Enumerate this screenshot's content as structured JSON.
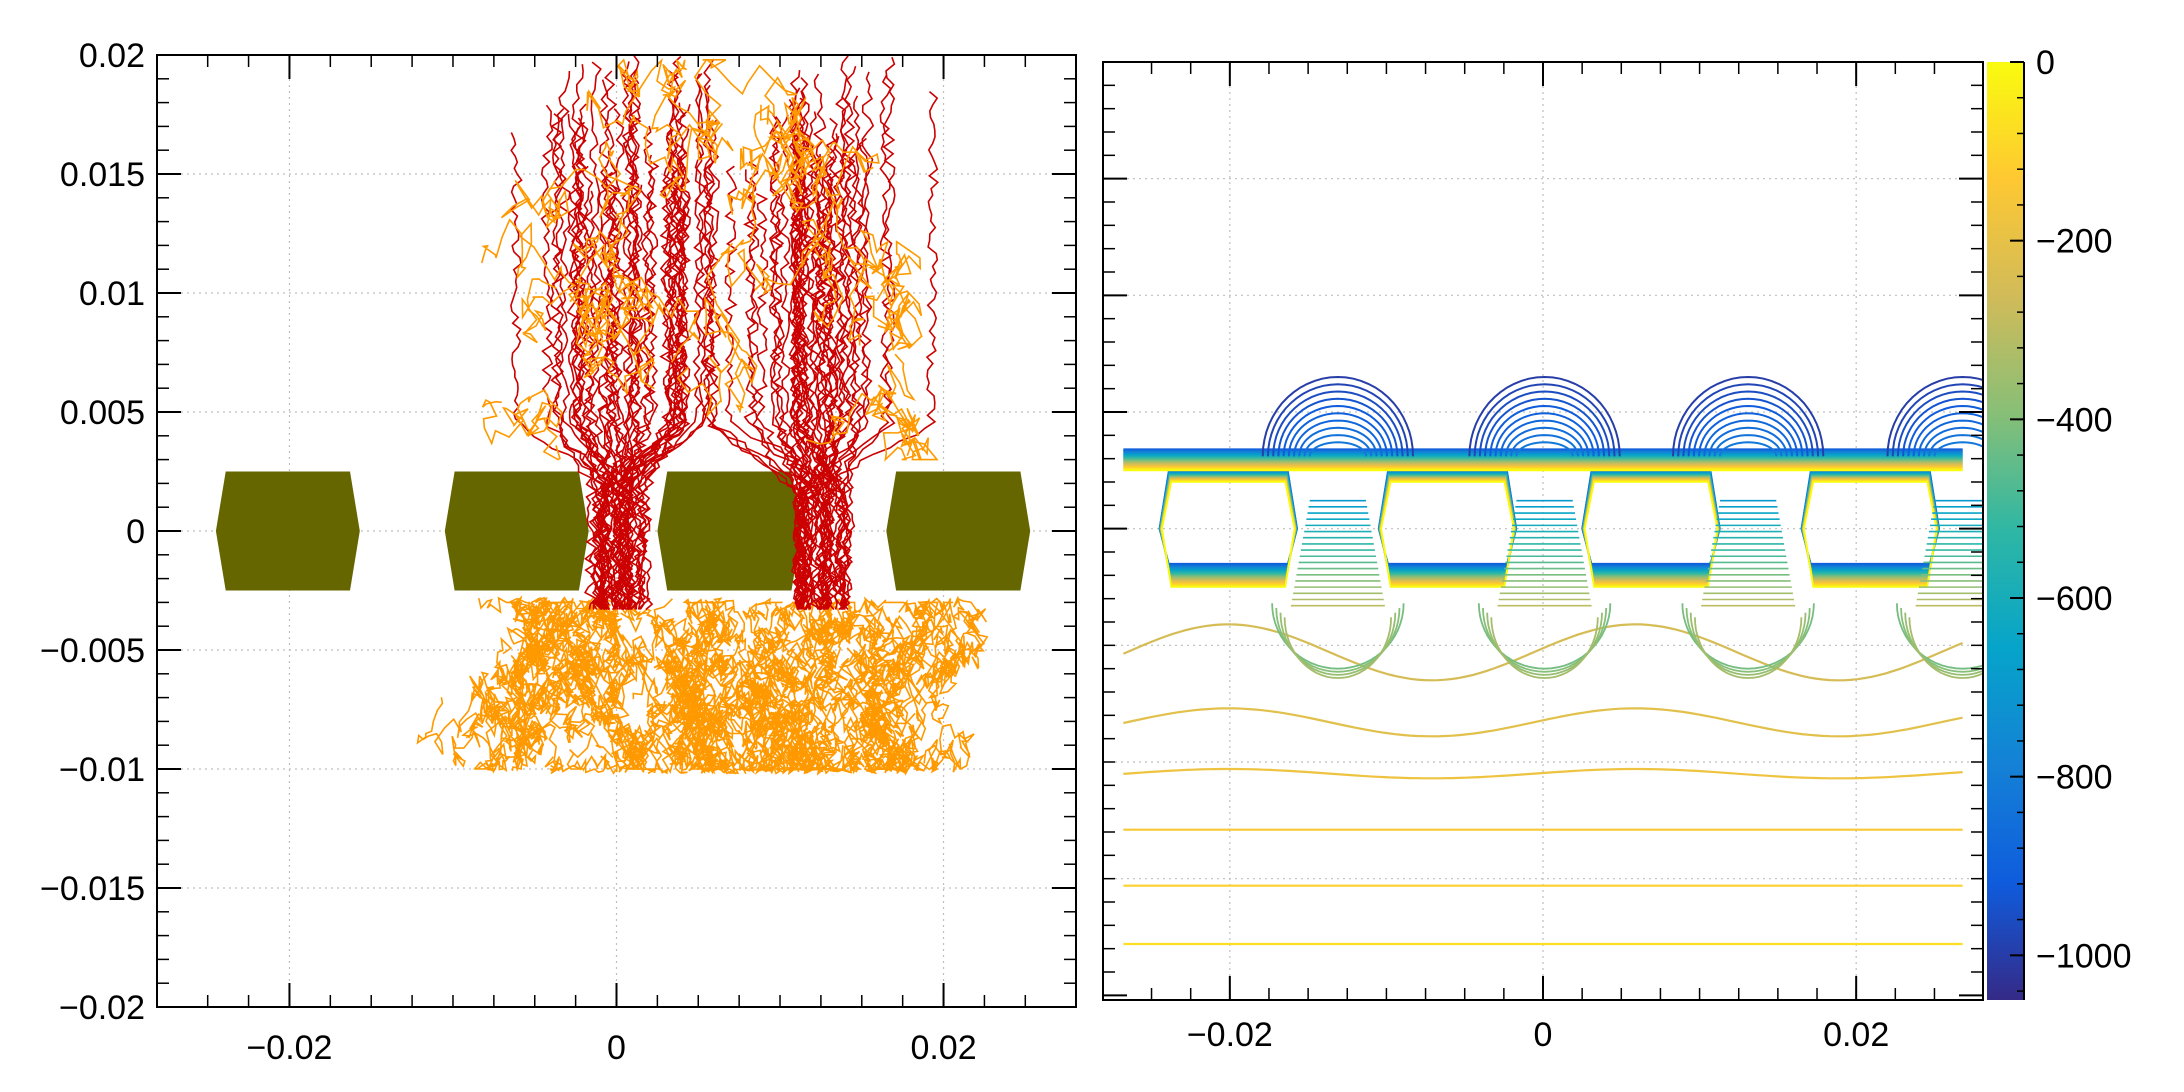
{
  "chart_data": [
    {
      "type": "scatter",
      "title": "",
      "xlabel": "",
      "ylabel": "",
      "xlim": [
        -0.0281,
        0.0281
      ],
      "ylim": [
        -0.02,
        0.02
      ],
      "grid": true,
      "x_ticks": [
        -0.02,
        0,
        0.02
      ],
      "x_tick_labels": [
        "−0.02",
        "0",
        "0.02"
      ],
      "y_ticks": [
        0.02,
        0.015,
        0.01,
        0.005,
        0,
        -0.005,
        -0.01,
        -0.015,
        -0.02
      ],
      "y_tick_labels": [
        "0.02",
        "0.015",
        "0.01",
        "0.005",
        "0",
        "−0.005",
        "−0.01",
        "−0.015",
        "−0.02"
      ],
      "electrodes": {
        "color": "#666600",
        "centers_x": [
          -0.0201,
          -0.0061,
          0.0069,
          0.0209
        ],
        "half_width": 0.0044,
        "half_height": 0.0025,
        "chamfer": 0.0006
      },
      "drift_clusters": [
        {
          "x_center": 0.0001,
          "spread": 0.0075
        },
        {
          "x_center": 0.0127,
          "spread": 0.0075
        }
      ],
      "series": [
        {
          "color": "#cc0000",
          "y_start": 0.02,
          "y_end": -0.0033
        },
        {
          "color": "#ff9900",
          "y_band": [
            -0.0102,
            -0.0028
          ]
        }
      ]
    },
    {
      "type": "contour",
      "title": "",
      "xlabel": "",
      "ylabel": "",
      "xlim": [
        -0.0281,
        0.0281
      ],
      "ylim": [
        -0.0202,
        0.02
      ],
      "grid": true,
      "x_ticks": [
        -0.02,
        0,
        0.02
      ],
      "x_tick_labels": [
        "−0.02",
        "0",
        "0.02"
      ],
      "plotted_range": [
        -0.0268,
        0.0268
      ],
      "colorbar": {
        "range": [
          -1050,
          0
        ],
        "ticks": [
          0,
          -200,
          -400,
          -600,
          -800,
          -1000
        ],
        "tick_labels": [
          "0",
          "−200",
          "−400",
          "−600",
          "−800",
          "−1000"
        ],
        "colormap": [
          "#352a87",
          "#0f5cdd",
          "#1481d6",
          "#06a4ca",
          "#2eb7a4",
          "#87bf77",
          "#d1bb59",
          "#fec832",
          "#f9fb0e"
        ]
      },
      "electrode_centers_x": [
        -0.0201,
        -0.0061,
        0.0069,
        0.0209
      ],
      "gap_centers_x": [
        -0.0131,
        0.0001,
        0.0131,
        0.0268
      ],
      "horizontal_contours_y": [
        -0.0053,
        -0.0083,
        -0.0105,
        -0.0129,
        -0.0153,
        -0.0178
      ]
    }
  ]
}
